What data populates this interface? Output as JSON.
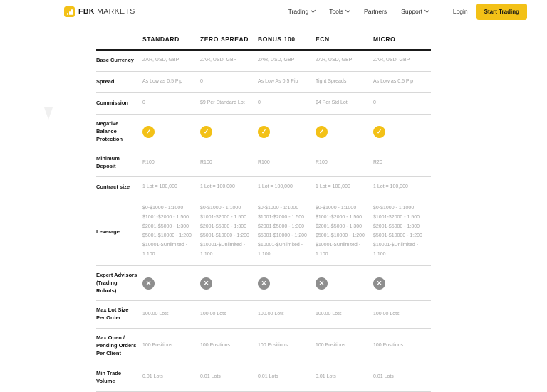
{
  "colors": {
    "accent_yellow": "#F3C117",
    "cross_gray": "#8E8E8E",
    "label_dark": "#141414",
    "value_gray": "#A3A3A3"
  },
  "icons": {
    "check": "✓",
    "cross": "✕",
    "chevron_down": "v",
    "logo": "bar-chart"
  },
  "header": {
    "brand_bold": "FBK",
    "brand_light": "MARKETS",
    "nav": [
      {
        "label": "Trading",
        "dropdown": true
      },
      {
        "label": "Tools",
        "dropdown": true
      },
      {
        "label": "Partners",
        "dropdown": false
      },
      {
        "label": "Support",
        "dropdown": true
      }
    ],
    "login_label": "Login",
    "cta_label": "Start Trading"
  },
  "table": {
    "columns": [
      "STANDARD",
      "ZERO SPREAD",
      "BONUS 100",
      "ECN",
      "MICRO"
    ],
    "rows": [
      {
        "label": "Base Currency",
        "type": "text",
        "values": [
          "ZAR, USD, GBP",
          "ZAR, USD, GBP",
          "ZAR, USD, GBP",
          "ZAR, USD, GBP",
          "ZAR, USD, GBP"
        ]
      },
      {
        "label": "Spread",
        "type": "text",
        "values": [
          "As Low as 0.5 Pip",
          "0",
          "As Low As 0.5 Pip",
          "Tight Spreads",
          "As Low as 0.5 Pip"
        ]
      },
      {
        "label": "Commission",
        "type": "text",
        "values": [
          "0",
          "$9 Per Standard Lot",
          "0",
          "$4 Per Std Lot",
          "0"
        ]
      },
      {
        "label": "Negative Balance Protection",
        "type": "check",
        "values": [
          "yes",
          "yes",
          "yes",
          "yes",
          "yes"
        ]
      },
      {
        "label": "Minimum Deposit",
        "type": "text",
        "values": [
          "R100",
          "R100",
          "R100",
          "R100",
          "R20"
        ]
      },
      {
        "label": "Contract size",
        "type": "text",
        "values": [
          "1 Lot = 100,000",
          "1 Lot = 100,000",
          "1 Lot = 100,000",
          "1 Lot = 100,000",
          "1 Lot = 100,000"
        ]
      },
      {
        "label": "Leverage",
        "type": "multiline",
        "values": [
          [
            "$0-$1000 - 1:1000",
            "$1001-$2000 - 1:500",
            "$2001-$5000 - 1:300",
            "$5001-$10000 - 1:200",
            "$10001-$Unlimited - 1:100"
          ],
          [
            "$0-$1000 - 1:1000",
            "$1001-$2000 - 1:500",
            "$2001-$5000 - 1:300",
            "$5001-$10000 - 1:200",
            "$10001-$Unlimited - 1:100"
          ],
          [
            "$0-$1000 - 1:1000",
            "$1001-$2000 - 1:500",
            "$2001-$5000 - 1:300",
            "$5001-$10000 - 1:200",
            "$10001-$Unlimited - 1:100"
          ],
          [
            "$0-$1000 - 1:1000",
            "$1001-$2000 - 1:500",
            "$2001-$5000 - 1:300",
            "$5001-$10000 - 1:200",
            "$10001-$Unlimited - 1:100"
          ],
          [
            "$0-$1000 - 1:1000",
            "$1001-$2000 - 1:500",
            "$2001-$5000 - 1:300",
            "$5001-$10000 - 1:200",
            "$10001-$Unlimited - 1:100"
          ]
        ]
      },
      {
        "label": "Expert Advisors (Trading Robots)",
        "type": "cross",
        "values": [
          "no",
          "no",
          "no",
          "no",
          "no"
        ]
      },
      {
        "label": "Max Lot Size Per Order",
        "type": "text",
        "values": [
          "100.00 Lots",
          "100.00 Lots",
          "100.00 Lots",
          "100.00 Lots",
          "100.00 Lots"
        ]
      },
      {
        "label": "Max Open / Pending Orders Per Client",
        "type": "text",
        "values": [
          "100 Positions",
          "100 Positions",
          "100 Positions",
          "100 Positions",
          "100 Positions"
        ]
      },
      {
        "label": "Min Trade Volume",
        "type": "text",
        "values": [
          "0.01 Lots",
          "0.01 Lots",
          "0.01 Lots",
          "0.01 Lots",
          "0.01 Lots"
        ]
      }
    ]
  }
}
